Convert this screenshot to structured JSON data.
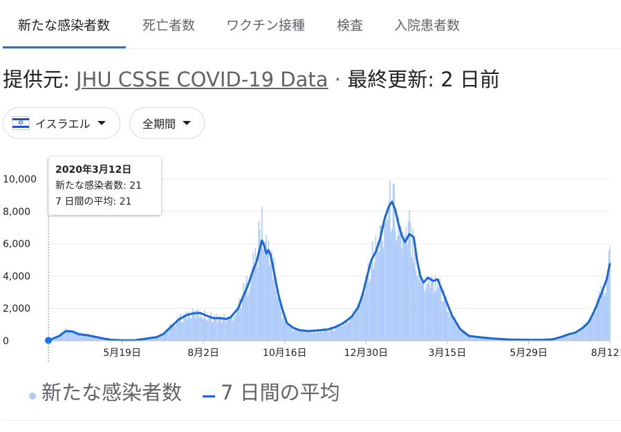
{
  "tabs": [
    {
      "label": "新たな感染者数",
      "active": true
    },
    {
      "label": "死亡者数",
      "active": false
    },
    {
      "label": "ワクチン接種",
      "active": false
    },
    {
      "label": "検査",
      "active": false
    },
    {
      "label": "入院患者数",
      "active": false
    }
  ],
  "source": {
    "prefix": "提供元: ",
    "link": "JHU CSSE COVID-19 Data",
    "separator": " · ",
    "updated": "最終更新: 2 日前"
  },
  "filters": {
    "country": "イスラエル",
    "period": "全期間"
  },
  "tooltip": {
    "date": "2020年3月12日",
    "cases_line": "新たな感染者数: 21",
    "avg_line": "7 日間の平均: 21"
  },
  "legend": {
    "cases": "新たな感染者数",
    "average": "7 日間の平均"
  },
  "colors": {
    "bar": "#aecbfa",
    "line": "#1967d2",
    "accent": "#1a73e8",
    "grid": "#e8eaed",
    "axis_text": "#202124"
  },
  "chart_data": {
    "type": "bar",
    "title": "",
    "xlabel": "",
    "ylabel": "",
    "ylim": [
      0,
      10000
    ],
    "y_ticks": [
      {
        "value": 0,
        "label": "0"
      },
      {
        "value": 2000,
        "label": "2,000"
      },
      {
        "value": 4000,
        "label": "4,000"
      },
      {
        "value": 6000,
        "label": "6,000"
      },
      {
        "value": 8000,
        "label": "8,000"
      },
      {
        "value": 10000,
        "label": "10,000"
      }
    ],
    "x_ticks": [
      {
        "day": 68,
        "label": "5月19日"
      },
      {
        "day": 143,
        "label": "8月2日"
      },
      {
        "day": 218,
        "label": "10月16日"
      },
      {
        "day": 293,
        "label": "12月30日"
      },
      {
        "day": 368,
        "label": "3月15日"
      },
      {
        "day": 443,
        "label": "5月29日"
      },
      {
        "day": 518,
        "label": "8月12日"
      }
    ],
    "x_range_days": [
      0,
      518
    ],
    "highlight": {
      "day": 0,
      "date": "2020年3月12日",
      "cases": 21,
      "avg": 21
    },
    "series": [
      {
        "name": "7 日間の平均",
        "kind": "line",
        "points": [
          [
            0,
            21
          ],
          [
            10,
            300
          ],
          [
            16,
            600
          ],
          [
            22,
            580
          ],
          [
            28,
            400
          ],
          [
            35,
            350
          ],
          [
            42,
            260
          ],
          [
            50,
            150
          ],
          [
            58,
            60
          ],
          [
            68,
            30
          ],
          [
            80,
            40
          ],
          [
            90,
            130
          ],
          [
            100,
            230
          ],
          [
            106,
            420
          ],
          [
            112,
            800
          ],
          [
            120,
            1300
          ],
          [
            128,
            1600
          ],
          [
            134,
            1700
          ],
          [
            140,
            1720
          ],
          [
            146,
            1550
          ],
          [
            152,
            1400
          ],
          [
            158,
            1400
          ],
          [
            164,
            1350
          ],
          [
            168,
            1450
          ],
          [
            175,
            2000
          ],
          [
            180,
            2800
          ],
          [
            184,
            3400
          ],
          [
            188,
            4200
          ],
          [
            192,
            4900
          ],
          [
            195,
            5700
          ],
          [
            197,
            6200
          ],
          [
            199,
            5900
          ],
          [
            201,
            5400
          ],
          [
            203,
            5600
          ],
          [
            205,
            5300
          ],
          [
            208,
            4300
          ],
          [
            212,
            2900
          ],
          [
            216,
            1900
          ],
          [
            220,
            1100
          ],
          [
            226,
            800
          ],
          [
            232,
            650
          ],
          [
            240,
            600
          ],
          [
            250,
            650
          ],
          [
            258,
            700
          ],
          [
            265,
            850
          ],
          [
            272,
            1100
          ],
          [
            280,
            1500
          ],
          [
            286,
            2100
          ],
          [
            290,
            2900
          ],
          [
            294,
            4000
          ],
          [
            298,
            5000
          ],
          [
            302,
            5500
          ],
          [
            306,
            6300
          ],
          [
            310,
            7500
          ],
          [
            314,
            8300
          ],
          [
            317,
            8600
          ],
          [
            320,
            8100
          ],
          [
            323,
            7200
          ],
          [
            326,
            6500
          ],
          [
            329,
            6100
          ],
          [
            333,
            6600
          ],
          [
            337,
            6400
          ],
          [
            340,
            5000
          ],
          [
            343,
            4000
          ],
          [
            346,
            3600
          ],
          [
            350,
            3900
          ],
          [
            355,
            3700
          ],
          [
            359,
            3800
          ],
          [
            365,
            2800
          ],
          [
            372,
            1600
          ],
          [
            380,
            700
          ],
          [
            388,
            300
          ],
          [
            398,
            220
          ],
          [
            410,
            140
          ],
          [
            425,
            80
          ],
          [
            440,
            60
          ],
          [
            455,
            50
          ],
          [
            465,
            90
          ],
          [
            472,
            220
          ],
          [
            480,
            400
          ],
          [
            486,
            500
          ],
          [
            492,
            750
          ],
          [
            498,
            1100
          ],
          [
            504,
            1900
          ],
          [
            510,
            2900
          ],
          [
            515,
            3800
          ],
          [
            518,
            4800
          ]
        ]
      },
      {
        "name": "新たな感染者数",
        "kind": "bars",
        "points": [
          [
            0,
            21
          ],
          [
            10,
            400
          ],
          [
            16,
            800
          ],
          [
            22,
            700
          ],
          [
            28,
            550
          ],
          [
            35,
            450
          ],
          [
            42,
            350
          ],
          [
            50,
            200
          ],
          [
            58,
            80
          ],
          [
            68,
            40
          ],
          [
            80,
            60
          ],
          [
            90,
            180
          ],
          [
            100,
            300
          ],
          [
            106,
            500
          ],
          [
            112,
            1000
          ],
          [
            120,
            1600
          ],
          [
            128,
            2000
          ],
          [
            134,
            2000
          ],
          [
            140,
            2100
          ],
          [
            146,
            1900
          ],
          [
            152,
            1800
          ],
          [
            158,
            1700
          ],
          [
            164,
            1650
          ],
          [
            168,
            1700
          ],
          [
            175,
            2600
          ],
          [
            180,
            3600
          ],
          [
            184,
            4500
          ],
          [
            188,
            5500
          ],
          [
            192,
            6400
          ],
          [
            195,
            8000
          ],
          [
            197,
            9000
          ],
          [
            199,
            7600
          ],
          [
            201,
            7000
          ],
          [
            203,
            7200
          ],
          [
            205,
            6700
          ],
          [
            208,
            5200
          ],
          [
            212,
            3400
          ],
          [
            216,
            2200
          ],
          [
            220,
            1300
          ],
          [
            226,
            900
          ],
          [
            232,
            780
          ],
          [
            240,
            700
          ],
          [
            250,
            750
          ],
          [
            258,
            820
          ],
          [
            265,
            1000
          ],
          [
            272,
            1300
          ],
          [
            280,
            1800
          ],
          [
            286,
            2600
          ],
          [
            290,
            3600
          ],
          [
            294,
            5200
          ],
          [
            298,
            6300
          ],
          [
            302,
            6800
          ],
          [
            306,
            7800
          ],
          [
            310,
            9400
          ],
          [
            314,
            10000
          ],
          [
            317,
            10300
          ],
          [
            320,
            9900
          ],
          [
            323,
            8800
          ],
          [
            326,
            7800
          ],
          [
            329,
            7000
          ],
          [
            333,
            8500
          ],
          [
            337,
            7700
          ],
          [
            340,
            6000
          ],
          [
            343,
            4700
          ],
          [
            346,
            4300
          ],
          [
            350,
            4800
          ],
          [
            355,
            4500
          ],
          [
            359,
            4500
          ],
          [
            365,
            3300
          ],
          [
            372,
            1900
          ],
          [
            380,
            850
          ],
          [
            388,
            380
          ],
          [
            398,
            260
          ],
          [
            410,
            170
          ],
          [
            425,
            100
          ],
          [
            440,
            75
          ],
          [
            455,
            65
          ],
          [
            465,
            110
          ],
          [
            472,
            280
          ],
          [
            480,
            480
          ],
          [
            486,
            600
          ],
          [
            492,
            900
          ],
          [
            498,
            1400
          ],
          [
            504,
            2300
          ],
          [
            510,
            3500
          ],
          [
            515,
            4700
          ],
          [
            518,
            6400
          ]
        ]
      }
    ]
  }
}
